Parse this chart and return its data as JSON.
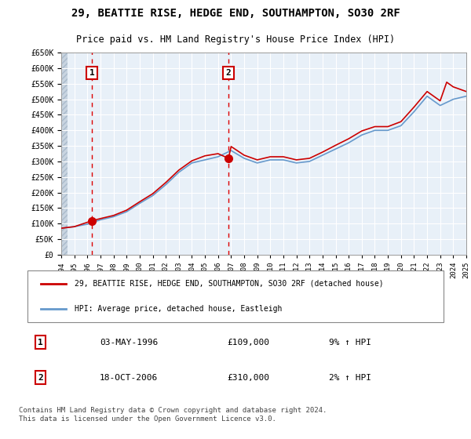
{
  "title": "29, BEATTIE RISE, HEDGE END, SOUTHAMPTON, SO30 2RF",
  "subtitle": "Price paid vs. HM Land Registry's House Price Index (HPI)",
  "background_color": "#ddeeff",
  "plot_bg_color": "#e8f0f8",
  "hatch_color": "#c0c8d8",
  "grid_color": "#ffffff",
  "ylim": [
    0,
    650000
  ],
  "yticks": [
    0,
    50000,
    100000,
    150000,
    200000,
    250000,
    300000,
    350000,
    400000,
    450000,
    500000,
    550000,
    600000,
    650000
  ],
  "xlim_start": 1994,
  "xlim_end": 2025,
  "xticks": [
    1994,
    1995,
    1996,
    1997,
    1998,
    1999,
    2000,
    2001,
    2002,
    2003,
    2004,
    2005,
    2006,
    2007,
    2008,
    2009,
    2010,
    2011,
    2012,
    2013,
    2014,
    2015,
    2016,
    2017,
    2018,
    2019,
    2020,
    2021,
    2022,
    2023,
    2024,
    2025
  ],
  "red_line_color": "#cc0000",
  "blue_line_color": "#6699cc",
  "marker_color": "#cc0000",
  "vline_color": "#dd0000",
  "transaction1": {
    "date": 1996.35,
    "price": 109000,
    "label": "1",
    "label_date": "03-MAY-1996",
    "label_price": "£109,000",
    "label_hpi": "9% ↑ HPI"
  },
  "transaction2": {
    "date": 2006.8,
    "price": 310000,
    "label": "2",
    "label_date": "18-OCT-2006",
    "label_price": "£310,000",
    "label_hpi": "2% ↑ HPI"
  },
  "legend_line1": "29, BEATTIE RISE, HEDGE END, SOUTHAMPTON, SO30 2RF (detached house)",
  "legend_line2": "HPI: Average price, detached house, Eastleigh",
  "footer": "Contains HM Land Registry data © Crown copyright and database right 2024.\nThis data is licensed under the Open Government Licence v3.0.",
  "hpi_data_x": [
    1994,
    1995,
    1996,
    1997,
    1998,
    1999,
    2000,
    2001,
    2002,
    2003,
    2004,
    2005,
    2006,
    2007,
    2008,
    2009,
    2010,
    2011,
    2012,
    2013,
    2014,
    2015,
    2016,
    2017,
    2018,
    2019,
    2020,
    2021,
    2022,
    2023,
    2024,
    2025
  ],
  "hpi_data_y": [
    85000,
    90000,
    98000,
    112000,
    122000,
    138000,
    165000,
    190000,
    225000,
    265000,
    295000,
    305000,
    315000,
    335000,
    310000,
    295000,
    305000,
    305000,
    295000,
    300000,
    320000,
    340000,
    360000,
    385000,
    400000,
    400000,
    415000,
    460000,
    510000,
    480000,
    500000,
    510000
  ],
  "price_data_x": [
    1994,
    1995,
    1996.35,
    1997,
    1998,
    1999,
    2000,
    2001,
    2002,
    2003,
    2004,
    2005,
    2006,
    2006.8,
    2007,
    2008,
    2009,
    2010,
    2011,
    2012,
    2013,
    2014,
    2015,
    2016,
    2017,
    2018,
    2019,
    2020,
    2021,
    2022,
    2023,
    2023.5,
    2024,
    2025
  ],
  "price_data_y": [
    85000,
    90000,
    109000,
    116000,
    126000,
    143000,
    170000,
    196000,
    232000,
    272000,
    302000,
    318000,
    325000,
    310000,
    348000,
    320000,
    305000,
    315000,
    315000,
    305000,
    310000,
    330000,
    352000,
    373000,
    398000,
    412000,
    412000,
    428000,
    475000,
    525000,
    495000,
    555000,
    540000,
    525000
  ]
}
